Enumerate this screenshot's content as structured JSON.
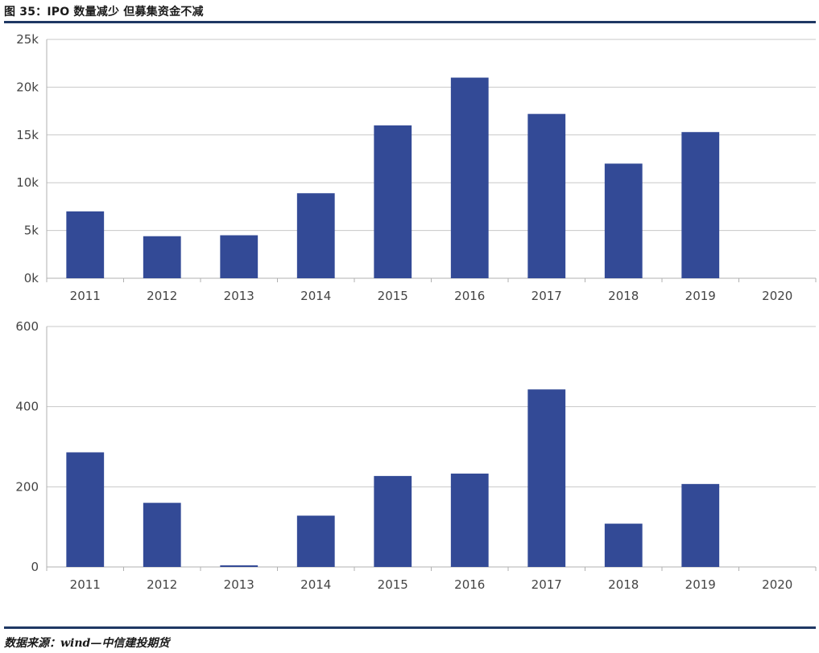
{
  "figure": {
    "title": "图 35：IPO 数量减少 但募集资金不减",
    "source": "数据来源：wind—中信建投期货"
  },
  "colors": {
    "bar": "#334a96",
    "rule": "#1f3864",
    "grid": "#c8c8c8",
    "axis": "#b0b0b0"
  },
  "chart_data": [
    {
      "type": "bar",
      "title": "",
      "xlabel": "",
      "ylabel": "",
      "categories": [
        "2011",
        "2012",
        "2013",
        "2014",
        "2015",
        "2016",
        "2017",
        "2018",
        "2019",
        "2020"
      ],
      "values": [
        7000,
        4400,
        4500,
        8900,
        16000,
        21000,
        17200,
        12000,
        15300,
        0
      ],
      "ylim": [
        0,
        25000
      ],
      "yticks": [
        0,
        5000,
        10000,
        15000,
        20000,
        25000
      ],
      "ytick_labels": [
        "0k",
        "5k",
        "10k",
        "15k",
        "20k",
        "25k"
      ],
      "grid": true,
      "legend": "none"
    },
    {
      "type": "bar",
      "title": "",
      "xlabel": "",
      "ylabel": "",
      "categories": [
        "2011",
        "2012",
        "2013",
        "2014",
        "2015",
        "2016",
        "2017",
        "2018",
        "2019",
        "2020"
      ],
      "values": [
        286,
        160,
        4,
        128,
        227,
        233,
        443,
        108,
        207,
        0
      ],
      "ylim": [
        0,
        600
      ],
      "yticks": [
        0,
        200,
        400,
        600
      ],
      "ytick_labels": [
        "0",
        "200",
        "400",
        "600"
      ],
      "grid": true,
      "legend": "none"
    }
  ]
}
